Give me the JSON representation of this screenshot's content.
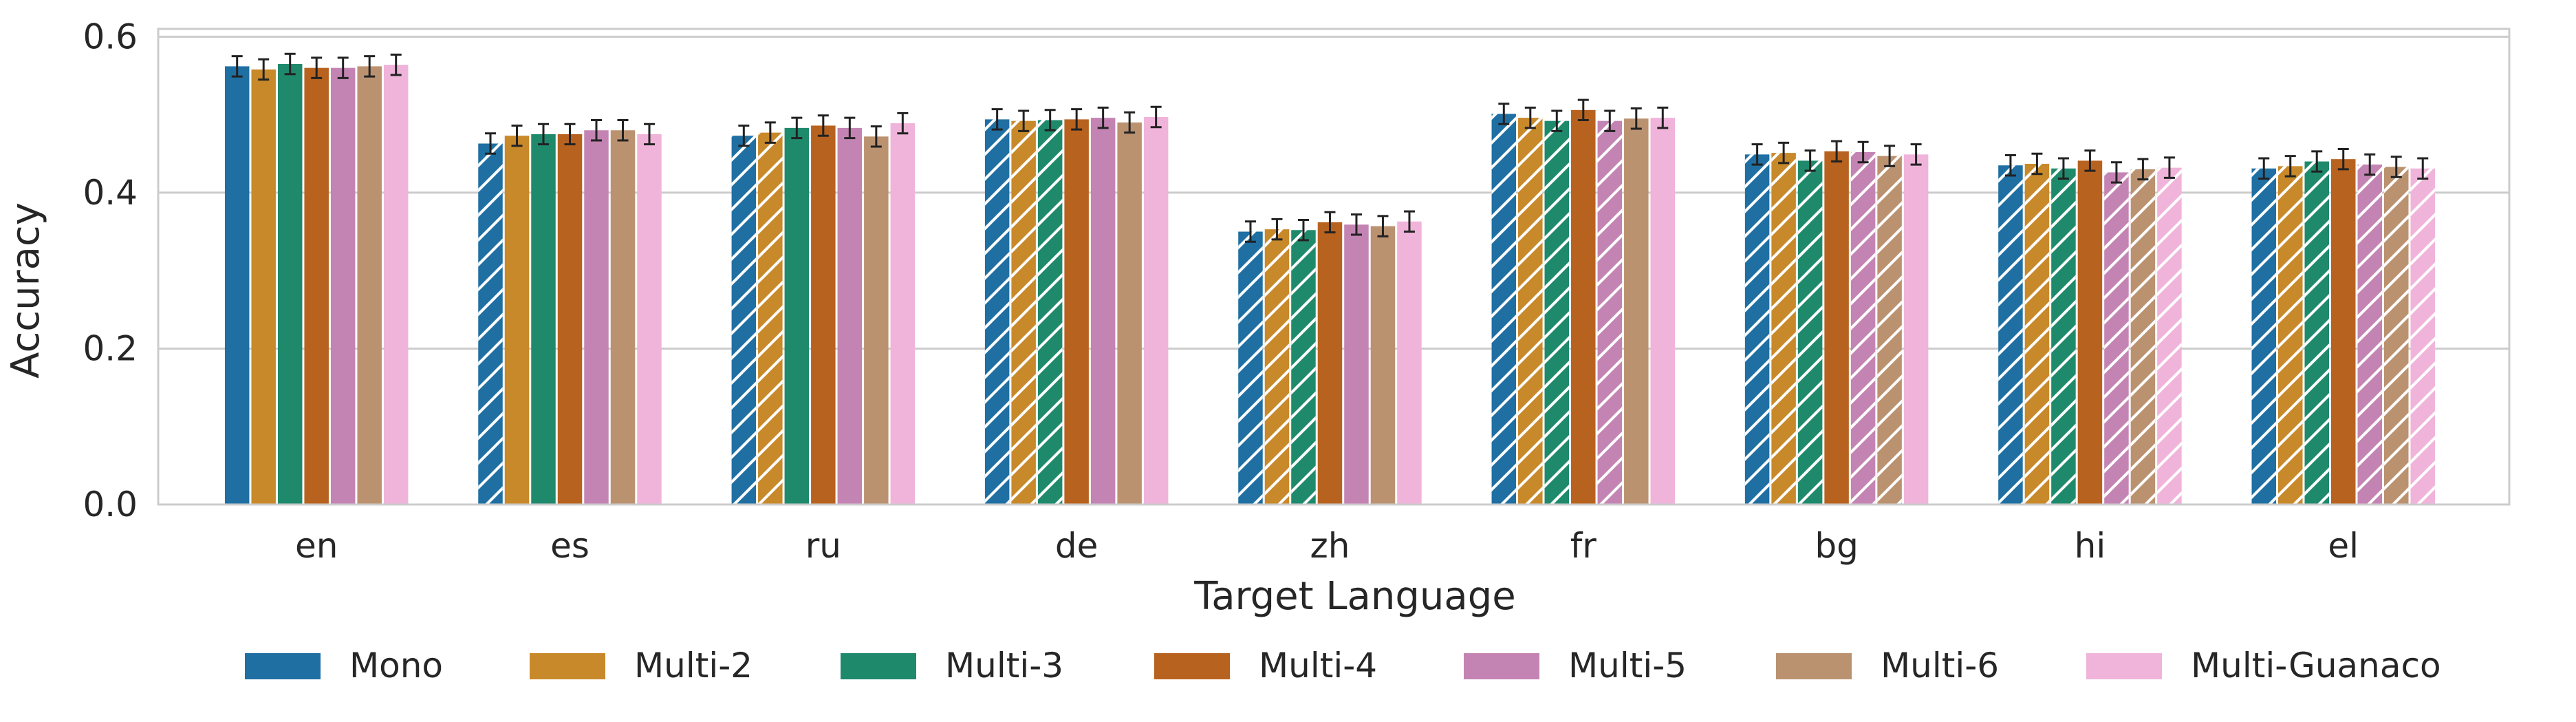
{
  "chart_data": {
    "type": "bar",
    "xlabel": "Target Language",
    "ylabel": "Accuracy",
    "ylim": [
      0,
      0.61
    ],
    "yticks": [
      "0.0",
      "0.2",
      "0.4",
      "0.6"
    ],
    "grid": true,
    "legend_position": "bottom",
    "categories": [
      "en",
      "es",
      "ru",
      "de",
      "zh",
      "fr",
      "bg",
      "hi",
      "el"
    ],
    "series": [
      {
        "name": "Mono",
        "color": "#1f6fa3",
        "values": [
          0.562,
          0.463,
          0.473,
          0.494,
          0.35,
          0.501,
          0.449,
          0.435,
          0.431
        ],
        "hatched": [
          false,
          true,
          true,
          true,
          true,
          true,
          true,
          true,
          true
        ]
      },
      {
        "name": "Multi-2",
        "color": "#c8892a",
        "values": [
          0.558,
          0.473,
          0.477,
          0.492,
          0.353,
          0.496,
          0.451,
          0.437,
          0.434
        ],
        "hatched": [
          false,
          false,
          true,
          true,
          true,
          true,
          true,
          true,
          true
        ]
      },
      {
        "name": "Multi-3",
        "color": "#1f8a6b",
        "values": [
          0.565,
          0.475,
          0.483,
          0.493,
          0.352,
          0.492,
          0.441,
          0.431,
          0.44
        ],
        "hatched": [
          false,
          false,
          false,
          true,
          true,
          true,
          true,
          true,
          true
        ]
      },
      {
        "name": "Multi-4",
        "color": "#b8621f",
        "values": [
          0.56,
          0.475,
          0.486,
          0.494,
          0.362,
          0.506,
          0.453,
          0.441,
          0.443
        ],
        "hatched": [
          false,
          false,
          false,
          false,
          false,
          false,
          false,
          false,
          false
        ]
      },
      {
        "name": "Multi-5",
        "color": "#c484b3",
        "values": [
          0.56,
          0.48,
          0.483,
          0.496,
          0.359,
          0.492,
          0.452,
          0.426,
          0.436
        ],
        "hatched": [
          false,
          false,
          false,
          false,
          false,
          true,
          true,
          true,
          true
        ]
      },
      {
        "name": "Multi-6",
        "color": "#bb9270",
        "values": [
          0.562,
          0.48,
          0.472,
          0.49,
          0.357,
          0.495,
          0.447,
          0.43,
          0.433
        ],
        "hatched": [
          false,
          false,
          false,
          false,
          false,
          false,
          true,
          true,
          true
        ]
      },
      {
        "name": "Multi-Guanaco",
        "color": "#f0b4da",
        "values": [
          0.564,
          0.475,
          0.489,
          0.497,
          0.363,
          0.496,
          0.449,
          0.432,
          0.431
        ],
        "hatched": [
          false,
          false,
          false,
          false,
          false,
          false,
          false,
          true,
          true
        ]
      }
    ],
    "error": [
      [
        0.013,
        0.013,
        0.013,
        0.013,
        0.013,
        0.013,
        0.013,
        0.013,
        0.013
      ],
      [
        0.013,
        0.013,
        0.013,
        0.013,
        0.013,
        0.013,
        0.013,
        0.013,
        0.013
      ],
      [
        0.013,
        0.013,
        0.013,
        0.013,
        0.013,
        0.013,
        0.013,
        0.013,
        0.013
      ],
      [
        0.013,
        0.013,
        0.013,
        0.013,
        0.013,
        0.013,
        0.013,
        0.013,
        0.013
      ],
      [
        0.013,
        0.013,
        0.013,
        0.013,
        0.013,
        0.013,
        0.013,
        0.013,
        0.013
      ],
      [
        0.013,
        0.013,
        0.013,
        0.013,
        0.013,
        0.013,
        0.013,
        0.013,
        0.013
      ],
      [
        0.013,
        0.013,
        0.013,
        0.013,
        0.013,
        0.013,
        0.013,
        0.013,
        0.013
      ]
    ]
  }
}
